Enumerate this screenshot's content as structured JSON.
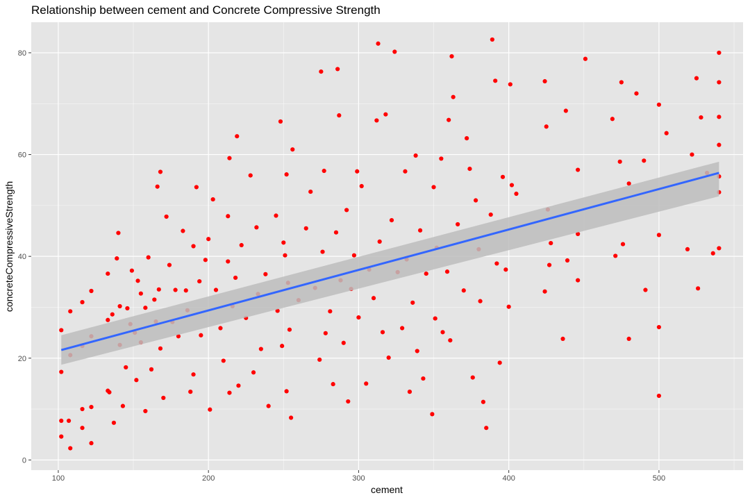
{
  "chart_data": {
    "type": "scatter",
    "title": "Relationship between cement and Concrete Compressive Strength",
    "xlabel": "cement",
    "ylabel": "concreteCompressiveStrength",
    "xlim": [
      82,
      556
    ],
    "ylim": [
      -2,
      86
    ],
    "x_ticks": [
      100,
      200,
      300,
      400,
      500
    ],
    "y_ticks": [
      0,
      20,
      40,
      60,
      80
    ],
    "grid": true,
    "legend": "none",
    "colors": {
      "panel_background": "#e5e5e5",
      "grid": "#ffffff",
      "points": "#ff0000",
      "trend_line": "#3366ff",
      "confidence_band": "#bdbdbd"
    },
    "trend_line": {
      "method": "linear",
      "start": [
        102,
        21.6
      ],
      "end": [
        540,
        56.4
      ],
      "band_start": [
        18.7,
        24.5
      ],
      "band_end": [
        51.8,
        58.6
      ]
    },
    "series": [
      {
        "points": [
          [
            102,
            25.5
          ],
          [
            102,
            17.3
          ],
          [
            102,
            7.7
          ],
          [
            102,
            4.6
          ],
          [
            107,
            7.7
          ],
          [
            108,
            2.3
          ],
          [
            108,
            20.6
          ],
          [
            108,
            29.2
          ],
          [
            116,
            31.0
          ],
          [
            116,
            22.4
          ],
          [
            116,
            10.0
          ],
          [
            116,
            6.3
          ],
          [
            122,
            33.2
          ],
          [
            122,
            24.3
          ],
          [
            122,
            10.4
          ],
          [
            122,
            3.3
          ],
          [
            133,
            27.5
          ],
          [
            133,
            36.6
          ],
          [
            133,
            13.6
          ],
          [
            134,
            13.3
          ],
          [
            136,
            28.6
          ],
          [
            137,
            7.3
          ],
          [
            139,
            39.6
          ],
          [
            140,
            44.6
          ],
          [
            141,
            30.2
          ],
          [
            141,
            22.6
          ],
          [
            143,
            10.6
          ],
          [
            145,
            18.2
          ],
          [
            146,
            29.8
          ],
          [
            148,
            26.7
          ],
          [
            149,
            37.2
          ],
          [
            151,
            25.0
          ],
          [
            152,
            15.7
          ],
          [
            153,
            35.2
          ],
          [
            155,
            32.7
          ],
          [
            155,
            23.1
          ],
          [
            158,
            29.9
          ],
          [
            158,
            9.6
          ],
          [
            160,
            39.8
          ],
          [
            162,
            17.8
          ],
          [
            164,
            31.5
          ],
          [
            165,
            27.2
          ],
          [
            166,
            53.7
          ],
          [
            167,
            33.5
          ],
          [
            168,
            56.6
          ],
          [
            168,
            21.9
          ],
          [
            170,
            12.2
          ],
          [
            172,
            47.8
          ],
          [
            174,
            38.3
          ],
          [
            176,
            27.1
          ],
          [
            178,
            33.4
          ],
          [
            180,
            24.3
          ],
          [
            183,
            45.0
          ],
          [
            185,
            33.3
          ],
          [
            186,
            29.4
          ],
          [
            188,
            13.4
          ],
          [
            190,
            42.0
          ],
          [
            190,
            16.8
          ],
          [
            192,
            53.6
          ],
          [
            194,
            35.1
          ],
          [
            195,
            24.5
          ],
          [
            198,
            39.3
          ],
          [
            200,
            43.4
          ],
          [
            201,
            9.9
          ],
          [
            203,
            51.2
          ],
          [
            205,
            33.4
          ],
          [
            208,
            25.9
          ],
          [
            210,
            19.5
          ],
          [
            213,
            47.9
          ],
          [
            213,
            39.0
          ],
          [
            214,
            59.3
          ],
          [
            214,
            13.2
          ],
          [
            216,
            30.2
          ],
          [
            218,
            35.8
          ],
          [
            219,
            63.6
          ],
          [
            220,
            14.6
          ],
          [
            222,
            42.2
          ],
          [
            225,
            27.9
          ],
          [
            228,
            55.9
          ],
          [
            230,
            17.2
          ],
          [
            232,
            45.7
          ],
          [
            233,
            32.6
          ],
          [
            235,
            21.8
          ],
          [
            238,
            36.5
          ],
          [
            240,
            10.6
          ],
          [
            245,
            48.0
          ],
          [
            246,
            29.3
          ],
          [
            248,
            66.5
          ],
          [
            249,
            22.4
          ],
          [
            250,
            42.7
          ],
          [
            251,
            40.2
          ],
          [
            252,
            13.5
          ],
          [
            252,
            56.1
          ],
          [
            253,
            34.8
          ],
          [
            254,
            25.6
          ],
          [
            255,
            8.3
          ],
          [
            256,
            61.0
          ],
          [
            260,
            31.4
          ],
          [
            265,
            45.5
          ],
          [
            268,
            52.7
          ],
          [
            271,
            33.8
          ],
          [
            274,
            19.7
          ],
          [
            275,
            76.3
          ],
          [
            276,
            40.9
          ],
          [
            277,
            56.8
          ],
          [
            278,
            24.9
          ],
          [
            281,
            29.2
          ],
          [
            283,
            14.9
          ],
          [
            285,
            44.7
          ],
          [
            286,
            76.8
          ],
          [
            287,
            67.7
          ],
          [
            288,
            35.3
          ],
          [
            290,
            23.0
          ],
          [
            292,
            49.1
          ],
          [
            293,
            11.5
          ],
          [
            295,
            33.6
          ],
          [
            297,
            40.2
          ],
          [
            299,
            56.7
          ],
          [
            300,
            28.0
          ],
          [
            302,
            53.8
          ],
          [
            305,
            15.0
          ],
          [
            307,
            37.4
          ],
          [
            310,
            31.8
          ],
          [
            312,
            66.7
          ],
          [
            313,
            81.8
          ],
          [
            314,
            42.9
          ],
          [
            316,
            25.1
          ],
          [
            318,
            67.9
          ],
          [
            320,
            20.1
          ],
          [
            322,
            47.1
          ],
          [
            324,
            80.2
          ],
          [
            326,
            36.9
          ],
          [
            329,
            25.9
          ],
          [
            331,
            56.7
          ],
          [
            332,
            39.4
          ],
          [
            334,
            13.4
          ],
          [
            336,
            30.9
          ],
          [
            338,
            59.8
          ],
          [
            339,
            21.4
          ],
          [
            341,
            45.1
          ],
          [
            343,
            16.0
          ],
          [
            345,
            36.6
          ],
          [
            349,
            9.0
          ],
          [
            350,
            53.6
          ],
          [
            351,
            27.8
          ],
          [
            352,
            41.7
          ],
          [
            355,
            59.2
          ],
          [
            356,
            25.1
          ],
          [
            359,
            37.0
          ],
          [
            360,
            66.8
          ],
          [
            361,
            23.5
          ],
          [
            362,
            79.3
          ],
          [
            363,
            71.3
          ],
          [
            366,
            46.3
          ],
          [
            370,
            33.3
          ],
          [
            372,
            63.2
          ],
          [
            374,
            57.2
          ],
          [
            376,
            16.2
          ],
          [
            378,
            51.0
          ],
          [
            380,
            41.4
          ],
          [
            381,
            31.2
          ],
          [
            383,
            11.4
          ],
          [
            385,
            6.3
          ],
          [
            388,
            48.2
          ],
          [
            389,
            82.6
          ],
          [
            391,
            74.5
          ],
          [
            392,
            38.6
          ],
          [
            394,
            19.1
          ],
          [
            396,
            55.6
          ],
          [
            398,
            37.4
          ],
          [
            400,
            30.1
          ],
          [
            401,
            73.8
          ],
          [
            402,
            54.0
          ],
          [
            405,
            52.3
          ],
          [
            424,
            33.1
          ],
          [
            424,
            74.4
          ],
          [
            425,
            65.5
          ],
          [
            426,
            49.2
          ],
          [
            427,
            38.3
          ],
          [
            428,
            42.6
          ],
          [
            436,
            23.8
          ],
          [
            438,
            68.6
          ],
          [
            439,
            39.2
          ],
          [
            446,
            57.0
          ],
          [
            446,
            44.4
          ],
          [
            446,
            35.3
          ],
          [
            451,
            78.8
          ],
          [
            469,
            67.0
          ],
          [
            471,
            40.1
          ],
          [
            474,
            58.6
          ],
          [
            475,
            74.2
          ],
          [
            476,
            42.4
          ],
          [
            480,
            23.8
          ],
          [
            480,
            54.3
          ],
          [
            485,
            72.0
          ],
          [
            490,
            58.8
          ],
          [
            491,
            33.4
          ],
          [
            500,
            69.8
          ],
          [
            500,
            44.2
          ],
          [
            500,
            26.1
          ],
          [
            500,
            12.6
          ],
          [
            505,
            64.2
          ],
          [
            519,
            41.4
          ],
          [
            522,
            60.0
          ],
          [
            525,
            75.0
          ],
          [
            526,
            33.7
          ],
          [
            528,
            67.3
          ],
          [
            532,
            56.4
          ],
          [
            536,
            40.6
          ],
          [
            540,
            80.0
          ],
          [
            540,
            74.2
          ],
          [
            540,
            67.4
          ],
          [
            540,
            61.9
          ],
          [
            540,
            52.6
          ],
          [
            540,
            41.6
          ],
          [
            540,
            55.7
          ]
        ]
      }
    ]
  }
}
